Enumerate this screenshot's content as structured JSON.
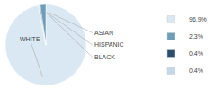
{
  "chart_data": {
    "type": "pie",
    "categories": [
      "WHITE",
      "ASIAN",
      "HISPANIC",
      "BLACK"
    ],
    "values": [
      96.9,
      2.3,
      0.4,
      0.4
    ],
    "value_labels": [
      "96.9%",
      "2.3%",
      "0.4%",
      "0.4%"
    ],
    "colors": [
      "#d9e8f2",
      "#6d9db8",
      "#2d4f6e",
      "#c5d8e8"
    ],
    "legend": "right"
  }
}
